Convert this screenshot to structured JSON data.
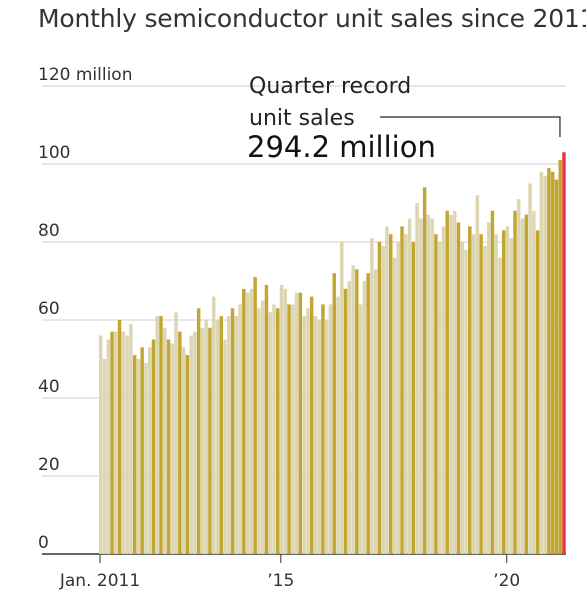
{
  "chart_data": {
    "type": "bar",
    "title": "Monthly semiconductor unit sales since 2011",
    "xlabel": "",
    "ylabel": "",
    "ylim": [
      0,
      120
    ],
    "yticks": [
      {
        "value": 0,
        "label": "0"
      },
      {
        "value": 20,
        "label": "20"
      },
      {
        "value": 40,
        "label": "40"
      },
      {
        "value": 60,
        "label": "60"
      },
      {
        "value": 80,
        "label": "80"
      },
      {
        "value": 100,
        "label": "100"
      },
      {
        "value": 120,
        "label": "120 million"
      }
    ],
    "xticks": [
      {
        "index": 0,
        "label": "Jan. 2011"
      },
      {
        "index": 48,
        "label": "’15"
      },
      {
        "index": 108,
        "label": "’20"
      }
    ],
    "grid": true,
    "colors": {
      "light": "#ddd6b3",
      "dark": "#c2a632",
      "highlight": "#e8383d",
      "grid": "#cfcfcf",
      "axis": "#333333"
    },
    "values": [
      56,
      50,
      55,
      57,
      57,
      60,
      57,
      56,
      59,
      51,
      50,
      53,
      49,
      53,
      55,
      61,
      61,
      58,
      55,
      54,
      62,
      57,
      53,
      51,
      56,
      57,
      63,
      58,
      60,
      58,
      66,
      60,
      61,
      55,
      61,
      63,
      61,
      64,
      68,
      67,
      68,
      71,
      63,
      65,
      69,
      62,
      64,
      63,
      69,
      68,
      64,
      64,
      67,
      67,
      61,
      63,
      66,
      61,
      60,
      64,
      60,
      64,
      72,
      66,
      80,
      68,
      70,
      74,
      73,
      64,
      70,
      72,
      81,
      73,
      80,
      79,
      84,
      82,
      76,
      80,
      84,
      82,
      86,
      80,
      90,
      86,
      94,
      87,
      86,
      82,
      80,
      84,
      88,
      87,
      88,
      85,
      80,
      78,
      84,
      82,
      92,
      82,
      79,
      85,
      88,
      82,
      76,
      83,
      84,
      81,
      88,
      91,
      86,
      87,
      95,
      88,
      83,
      98,
      97,
      99,
      98,
      96,
      101,
      103
    ],
    "shade": [
      "l",
      "l",
      "l",
      "d",
      "l",
      "d",
      "l",
      "l",
      "l",
      "d",
      "l",
      "d",
      "l",
      "l",
      "d",
      "l",
      "d",
      "l",
      "d",
      "l",
      "l",
      "d",
      "l",
      "d",
      "l",
      "l",
      "d",
      "l",
      "l",
      "d",
      "l",
      "l",
      "d",
      "l",
      "l",
      "d",
      "l",
      "l",
      "d",
      "l",
      "l",
      "d",
      "l",
      "l",
      "d",
      "l",
      "l",
      "d",
      "l",
      "l",
      "d",
      "l",
      "l",
      "d",
      "l",
      "l",
      "d",
      "l",
      "l",
      "d",
      "l",
      "l",
      "d",
      "l",
      "l",
      "d",
      "l",
      "l",
      "d",
      "l",
      "l",
      "d",
      "l",
      "l",
      "d",
      "l",
      "l",
      "d",
      "l",
      "l",
      "d",
      "l",
      "l",
      "d",
      "l",
      "l",
      "d",
      "l",
      "l",
      "d",
      "l",
      "l",
      "d",
      "l",
      "l",
      "d",
      "l",
      "l",
      "d",
      "l",
      "l",
      "d",
      "l",
      "l",
      "d",
      "l",
      "l",
      "d",
      "l",
      "l",
      "d",
      "l",
      "l",
      "d",
      "l",
      "l",
      "d",
      "l",
      "l",
      "d",
      "d",
      "d",
      "d",
      "h"
    ],
    "annotation": {
      "line1": "Quarter record",
      "line2": "unit sales",
      "value": "294.2 million"
    }
  }
}
